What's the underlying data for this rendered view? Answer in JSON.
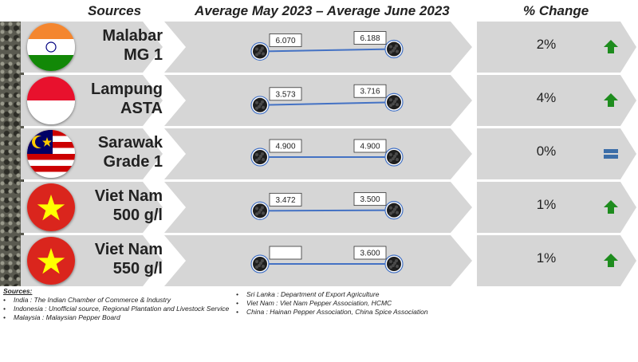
{
  "headers": {
    "sources": "Sources",
    "period": "Average May 2023 – Average June 2023",
    "change": "% Change"
  },
  "colors": {
    "panel": "#d6d6d6",
    "line": "#4472c4",
    "up": "#1e8c1e",
    "flat": "#3c6ea8"
  },
  "chart_data": {
    "type": "line",
    "x": [
      "Average May 2023",
      "Average June 2023"
    ],
    "series": [
      {
        "name": "Malabar MG 1",
        "origin": [
          "Malabar",
          "MG 1"
        ],
        "flag": "india-flag-icon",
        "values": [
          6.07,
          6.188
        ],
        "labels": [
          "6.070",
          "6.188"
        ],
        "change": "2%",
        "trend": "up"
      },
      {
        "name": "Lampung ASTA",
        "origin": [
          "Lampung",
          "ASTA"
        ],
        "flag": "indonesia-flag-icon",
        "values": [
          3.573,
          3.716
        ],
        "labels": [
          "3.573",
          "3.716"
        ],
        "change": "4%",
        "trend": "up"
      },
      {
        "name": "Sarawak Grade 1",
        "origin": [
          "Sarawak",
          "Grade 1"
        ],
        "flag": "malaysia-flag-icon",
        "values": [
          4.9,
          4.9
        ],
        "labels": [
          "4.900",
          "4.900"
        ],
        "change": "0%",
        "trend": "flat"
      },
      {
        "name": "Viet Nam 500 g/l",
        "origin": [
          "Viet Nam",
          "500 g/l"
        ],
        "flag": "vietnam-flag-icon",
        "values": [
          3.472,
          3.5
        ],
        "labels": [
          "3.472",
          "3.500"
        ],
        "change": "1%",
        "trend": "up"
      },
      {
        "name": "Viet Nam 550 g/l",
        "origin": [
          "Viet Nam",
          "550 g/l"
        ],
        "flag": "vietnam-flag-icon",
        "values": [
          null,
          3.6
        ],
        "labels": [
          "",
          "3.600"
        ],
        "change": "1%",
        "trend": "up"
      }
    ]
  },
  "sources": {
    "title": "Sources:",
    "left": [
      "India : The Indian Chamber of Commerce & Industry",
      "Indonesia : Unofficial source, Regional Plantation and Livestock Service",
      "Malaysia : Malaysian Pepper Board"
    ],
    "right": [
      "Sri Lanka : Department of Export Agriculture",
      "Viet Nam : Viet Nam Pepper Association, HCMC",
      "China : Hainan Pepper Association, China Spice Association"
    ]
  }
}
